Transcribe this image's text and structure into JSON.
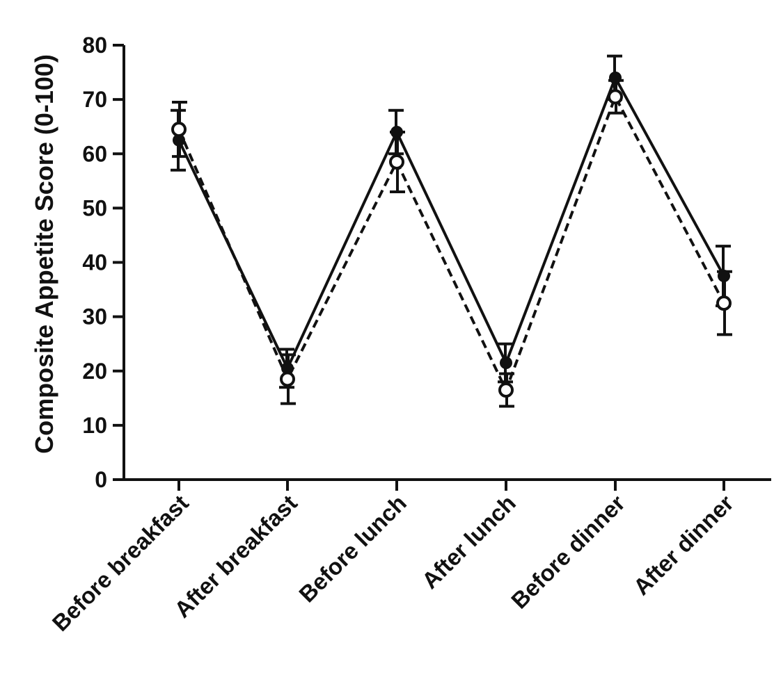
{
  "chart_data": {
    "type": "line",
    "ylabel": "Composite Appetite Score (0-100)",
    "xlabel": "",
    "ylim": [
      0,
      80
    ],
    "yticks": [
      "0",
      "10",
      "20",
      "30",
      "40",
      "50",
      "60",
      "70",
      "80"
    ],
    "categories": [
      "Before breakfast",
      "After breakfast",
      "Before lunch",
      "After lunch",
      "Before dinner",
      "After dinner"
    ],
    "series": [
      {
        "style": "solid",
        "marker": "filled-circle",
        "color": "#111111",
        "values": [
          62.5,
          20.5,
          64.0,
          21.5,
          74.0,
          37.5
        ],
        "error": [
          5.5,
          3.5,
          4.0,
          3.5,
          4.0,
          5.5
        ]
      },
      {
        "style": "dashed",
        "marker": "open-circle",
        "color": "#111111",
        "values": [
          64.5,
          18.5,
          58.5,
          16.5,
          70.5,
          32.5
        ],
        "error": [
          5.0,
          4.5,
          5.5,
          3.0,
          3.0,
          5.8
        ]
      }
    ]
  }
}
